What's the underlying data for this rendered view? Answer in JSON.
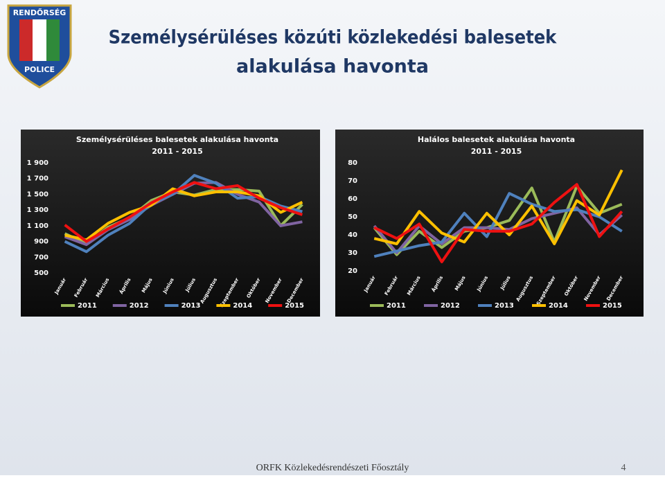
{
  "slide": {
    "title_line1": "Személysérüléses közúti közlekedési balesetek",
    "title_line2": "alakulása havonta",
    "footer": "ORFK Közlekedésrendészeti Főosztály",
    "page": "4"
  },
  "badge": {
    "top": "RENDŐRSÉG",
    "bottom": "POLICE"
  },
  "chart_data": [
    {
      "type": "line",
      "title": "Személysérüléses balesetek alakulása havonta",
      "subtitle": "2011 - 2015",
      "categories": [
        "Január",
        "Február",
        "Március",
        "Április",
        "Május",
        "Június",
        "Július",
        "Augusztus",
        "Szeptember",
        "Október",
        "November",
        "December"
      ],
      "ylim": [
        500,
        1900
      ],
      "yticks": [
        {
          "value": 500,
          "label": "500"
        },
        {
          "value": 700,
          "label": "700"
        },
        {
          "value": 900,
          "label": "900"
        },
        {
          "value": 1100,
          "label": "1 100"
        },
        {
          "value": 1300,
          "label": "1 300"
        },
        {
          "value": 1500,
          "label": "1 500"
        },
        {
          "value": 1700,
          "label": "1 700"
        },
        {
          "value": 1900,
          "label": "1 900"
        }
      ],
      "grid": false,
      "legend": "bottom",
      "series": [
        {
          "name": "2011",
          "color": "#9bbb59",
          "values": [
            1000,
            870,
            1080,
            1200,
            1420,
            1530,
            1490,
            1560,
            1560,
            1540,
            1100,
            1370
          ]
        },
        {
          "name": "2012",
          "color": "#8064a2",
          "values": [
            960,
            860,
            1050,
            1180,
            1360,
            1500,
            1640,
            1650,
            1500,
            1400,
            1100,
            1150
          ]
        },
        {
          "name": "2013",
          "color": "#4f81bd",
          "values": [
            900,
            770,
            980,
            1130,
            1380,
            1500,
            1740,
            1640,
            1450,
            1470,
            1350,
            1280
          ]
        },
        {
          "name": "2014",
          "color": "#ffc000",
          "values": [
            980,
            920,
            1130,
            1270,
            1360,
            1570,
            1480,
            1530,
            1530,
            1480,
            1270,
            1400
          ]
        },
        {
          "name": "2015",
          "color": "#ee1111",
          "values": [
            1110,
            900,
            1060,
            1210,
            1390,
            1530,
            1650,
            1570,
            1610,
            1450,
            1330,
            1240
          ]
        }
      ]
    },
    {
      "type": "line",
      "title": "Halálos balesetek alakulása havonta",
      "subtitle": "2011 - 2015",
      "categories": [
        "Január",
        "Február",
        "Március",
        "Április",
        "Május",
        "Június",
        "Július",
        "Augusztus",
        "Szeptember",
        "Október",
        "November",
        "December"
      ],
      "ylim": [
        20,
        80
      ],
      "yticks": [
        20,
        30,
        40,
        50,
        60,
        70,
        80
      ],
      "grid": false,
      "legend": "bottom",
      "series": [
        {
          "name": "2011",
          "color": "#9bbb59",
          "values": [
            44,
            29,
            42,
            33,
            42,
            44,
            48,
            66,
            36,
            67,
            52,
            57
          ]
        },
        {
          "name": "2012",
          "color": "#8064a2",
          "values": [
            45,
            30,
            45,
            35,
            44,
            44,
            43,
            49,
            52,
            55,
            40,
            51
          ]
        },
        {
          "name": "2013",
          "color": "#4f81bd",
          "values": [
            28,
            31,
            34,
            36,
            52,
            39,
            63,
            57,
            53,
            54,
            50,
            42
          ]
        },
        {
          "name": "2014",
          "color": "#ffc000",
          "values": [
            38,
            35,
            53,
            41,
            36,
            52,
            40,
            56,
            35,
            59,
            51,
            76
          ]
        },
        {
          "name": "2015",
          "color": "#ee1111",
          "values": [
            44,
            38,
            46,
            25,
            43,
            42,
            42,
            46,
            58,
            68,
            39,
            53
          ]
        }
      ]
    }
  ]
}
